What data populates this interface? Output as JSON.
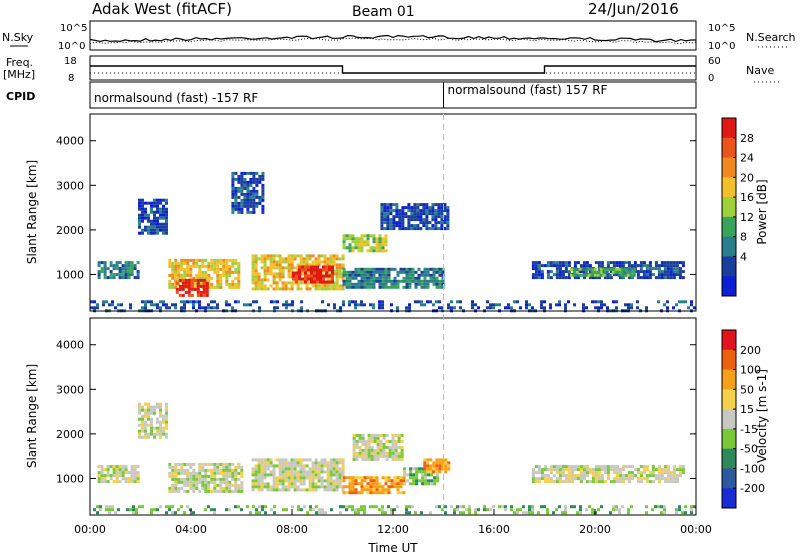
{
  "header": {
    "station": "Adak West (fitACF)",
    "beam": "Beam 01",
    "date": "24/Jun/2016"
  },
  "top_panels": {
    "nsky_label": "N.Sky",
    "nsearch_label": "N.Search",
    "count_ticks_left": [
      "10^5",
      "10^0"
    ],
    "count_ticks_right": [
      "10^5",
      "10^0"
    ],
    "freq_label_1": "Freq.",
    "freq_label_2": "[MHz]",
    "freq_ticks": [
      "18",
      "8"
    ],
    "nave_label": "Nave",
    "nave_ticks": [
      "60",
      "0"
    ],
    "cpid_label": "CPID",
    "cpid_segments": [
      {
        "label": "normalsound (fast) -157 RF",
        "start_hour": 0,
        "end_hour": 14
      },
      {
        "label": "normalsound (fast) 157 RF",
        "start_hour": 14,
        "end_hour": 24
      }
    ]
  },
  "chart_data": [
    {
      "type": "heatmap",
      "name": "power",
      "ylabel": "Slant Range [km]",
      "xlim": [
        0,
        24
      ],
      "ylim": [
        180,
        4600
      ],
      "yticks": [
        "1000",
        "2000",
        "3000",
        "4000"
      ],
      "colorbar": {
        "label": "Power [dB]",
        "ticks": [
          "4",
          "8",
          "12",
          "16",
          "20",
          "24",
          "28"
        ],
        "colors": [
          "#0a1fd6",
          "#1a3e9e",
          "#2a7d8a",
          "#38a35a",
          "#9ed03a",
          "#f2c12a",
          "#f08a1e",
          "#e9551a",
          "#e01a12"
        ]
      },
      "regions": [
        {
          "t0": 0.3,
          "t1": 1.9,
          "r0": 900,
          "r1": 1300,
          "level": 2
        },
        {
          "t0": 1.9,
          "t1": 3.0,
          "r0": 1900,
          "r1": 2700,
          "level": 1
        },
        {
          "t0": 3.1,
          "t1": 5.9,
          "r0": 700,
          "r1": 1350,
          "level": 5
        },
        {
          "t0": 3.4,
          "t1": 4.6,
          "r0": 550,
          "r1": 900,
          "level": 8
        },
        {
          "t0": 5.6,
          "t1": 6.9,
          "r0": 2400,
          "r1": 3300,
          "level": 1
        },
        {
          "t0": 6.4,
          "t1": 10.0,
          "r0": 700,
          "r1": 1450,
          "level": 5
        },
        {
          "t0": 8.0,
          "t1": 9.6,
          "r0": 800,
          "r1": 1200,
          "level": 8
        },
        {
          "t0": 10.0,
          "t1": 11.7,
          "r0": 1500,
          "r1": 1900,
          "level": 4
        },
        {
          "t0": 10.0,
          "t1": 14.0,
          "r0": 700,
          "r1": 1150,
          "level": 2
        },
        {
          "t0": 11.5,
          "t1": 14.2,
          "r0": 2000,
          "r1": 2600,
          "level": 1
        },
        {
          "t0": 17.5,
          "t1": 23.5,
          "r0": 900,
          "r1": 1300,
          "level": 1
        },
        {
          "t0": 19.0,
          "t1": 21.5,
          "r0": 950,
          "r1": 1150,
          "level": 3
        },
        {
          "t0": 0.0,
          "t1": 24.0,
          "r0": 200,
          "r1": 420,
          "level": 1
        }
      ]
    },
    {
      "type": "heatmap",
      "name": "velocity",
      "xlabel": "Time UT",
      "ylabel": "Slant Range [km]",
      "xlim": [
        0,
        24
      ],
      "ylim": [
        180,
        4600
      ],
      "xticks": [
        "00:00",
        "04:00",
        "08:00",
        "12:00",
        "16:00",
        "20:00",
        "00:00"
      ],
      "yticks": [
        "1000",
        "2000",
        "3000",
        "4000"
      ],
      "colorbar": {
        "label": "Velocity [m s-1]",
        "ticks": [
          "200",
          "100",
          "50",
          "15",
          "-15",
          "-50",
          "-100",
          "-200"
        ],
        "colors": [
          "#1a2ad6",
          "#2c5a9e",
          "#2e8a5a",
          "#7ac83a",
          "#c8c8c0",
          "#f5d04a",
          "#f5a01a",
          "#ee6010",
          "#e0141a"
        ]
      },
      "regions": [
        {
          "t0": 0.3,
          "t1": 1.9,
          "r0": 900,
          "r1": 1300,
          "level": 4
        },
        {
          "t0": 1.9,
          "t1": 3.0,
          "r0": 1900,
          "r1": 2700,
          "level": 4
        },
        {
          "t0": 3.1,
          "t1": 6.0,
          "r0": 700,
          "r1": 1350,
          "level": 4
        },
        {
          "t0": 6.4,
          "t1": 10.0,
          "r0": 750,
          "r1": 1450,
          "level": 4
        },
        {
          "t0": 10.0,
          "t1": 12.4,
          "r0": 650,
          "r1": 1050,
          "level": 6
        },
        {
          "t0": 10.4,
          "t1": 12.4,
          "r0": 1450,
          "r1": 2000,
          "level": 4
        },
        {
          "t0": 12.4,
          "t1": 13.8,
          "r0": 900,
          "r1": 1250,
          "level": 3
        },
        {
          "t0": 13.2,
          "t1": 14.2,
          "r0": 1150,
          "r1": 1450,
          "level": 6
        },
        {
          "t0": 17.5,
          "t1": 23.5,
          "r0": 900,
          "r1": 1300,
          "level": 4
        },
        {
          "t0": 0.0,
          "t1": 24.0,
          "r0": 200,
          "r1": 400,
          "level": 3
        }
      ]
    }
  ]
}
